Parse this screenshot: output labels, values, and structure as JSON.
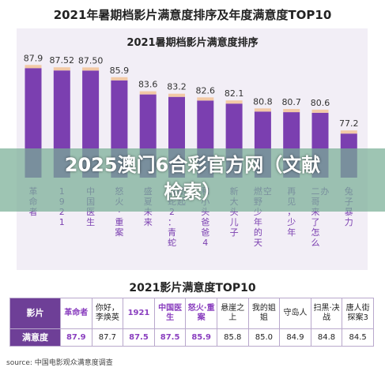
{
  "page_title": "2021年暑期档影片满意度排序及年度满意度TOP10",
  "banner": {
    "line1": "2025澳门6合彩官方网（文献",
    "line2": "检索）"
  },
  "chart_data": {
    "type": "bar",
    "title": "2021暑期档影片满意度排序",
    "categories": [
      "革命者",
      "1921",
      "中国医生",
      "怒火·重案",
      "盛夏未来",
      "白蛇2：青蛇劫起",
      "和小头爸爸4",
      "新大头儿子",
      "燃野少年的天空",
      "再见，少年",
      "二哥来了怎么办",
      "兔子暴力"
    ],
    "label_lines": [
      [
        "革命者"
      ],
      [
        "1921"
      ],
      [
        "中国医生"
      ],
      [
        "怒火·重案"
      ],
      [
        "盛夏未来"
      ],
      [
        "白蛇2：青蛇劫起"
      ],
      [
        "和小头爸爸4"
      ],
      [
        "新大头儿子"
      ],
      [
        "燃野少年的天空"
      ],
      [
        "再见，少年"
      ],
      [
        "二哥来了怎么办"
      ],
      [
        "兔子暴力"
      ]
    ],
    "values": [
      87.9,
      87.52,
      87.5,
      85.9,
      83.6,
      83.2,
      82.6,
      82.1,
      80.8,
      80.7,
      80.6,
      77.2
    ],
    "value_labels": [
      "87.9",
      "87.52",
      "87.50",
      "85.9",
      "83.6",
      "83.2",
      "82.6",
      "82.1",
      "80.8",
      "80.7",
      "80.6",
      "77.2"
    ],
    "ylim": [
      70,
      90
    ],
    "bar_color": "#7b3fb0",
    "highlight_color": "#f2c9a6",
    "grid": false
  },
  "table": {
    "title": "2021影片满意度TOP10",
    "row1_header": "影片",
    "row2_header": "满意度",
    "films": [
      {
        "name": "革命者",
        "score": "87.9",
        "highlight": true
      },
      {
        "name": "你好，李焕英",
        "score": "87.7",
        "highlight": false
      },
      {
        "name": "1921",
        "score": "87.5",
        "highlight": true
      },
      {
        "name": "中国医生",
        "score": "87.5",
        "highlight": true
      },
      {
        "name": "怒火·重案",
        "score": "85.9",
        "highlight": true
      },
      {
        "name": "悬崖之上",
        "score": "85.8",
        "highlight": false
      },
      {
        "name": "我的姐姐",
        "score": "85.0",
        "highlight": false
      },
      {
        "name": "守岛人",
        "score": "84.9",
        "highlight": false
      },
      {
        "name": "扫黑·决战",
        "score": "84.8",
        "highlight": false
      },
      {
        "name": "唐人街探案3",
        "score": "84.5",
        "highlight": false
      }
    ]
  },
  "source": "source: 中国电影观众满意度调查"
}
